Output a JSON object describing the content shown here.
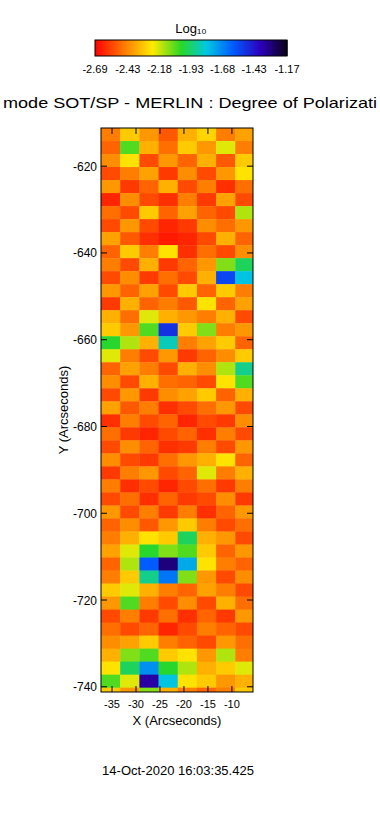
{
  "chart_data": {
    "type": "heatmap",
    "title": "mode SOT/SP - MERLIN : Degree of Polarizati",
    "x_label": "X (Arcseconds)",
    "y_label": "Y (Arcseconds)",
    "annotation": "14-Oct-2020 16:03:35.425",
    "xlim": [
      -37.3,
      -5.6
    ],
    "ylim": [
      -741.2,
      -611.2
    ],
    "xticks": [
      -35,
      -30,
      -25,
      -20,
      -15,
      -10
    ],
    "yticks": [
      -740,
      -720,
      -700,
      -680,
      -660,
      -640,
      -620
    ],
    "x": [
      -35.3,
      -31.3,
      -27.3,
      -23.3,
      -19.3,
      -15.3,
      -11.3,
      -7.3
    ],
    "y": [
      -612.7,
      -615.7,
      -618.7,
      -621.7,
      -624.7,
      -627.7,
      -630.7,
      -633.7,
      -636.7,
      -639.7,
      -642.7,
      -645.7,
      -648.7,
      -651.7,
      -654.7,
      -657.7,
      -660.7,
      -663.7,
      -666.7,
      -669.7,
      -672.7,
      -675.7,
      -678.7,
      -681.7,
      -684.7,
      -687.7,
      -690.7,
      -693.7,
      -696.7,
      -699.7,
      -702.7,
      -705.7,
      -708.7,
      -711.7,
      -714.7,
      -717.7,
      -720.7,
      -723.7,
      -726.7,
      -729.7,
      -732.7,
      -735.7,
      -738.7,
      -741.7
    ],
    "values": [
      [
        -2.45,
        -2.3,
        -2.4,
        -2.52,
        -2.35,
        -2.28,
        -2.45,
        -2.38
      ],
      [
        -2.5,
        -2.05,
        -2.35,
        -2.48,
        -2.3,
        -2.4,
        -2.2,
        -2.45
      ],
      [
        -2.42,
        -2.25,
        -2.55,
        -2.4,
        -2.5,
        -2.35,
        -2.52,
        -2.3
      ],
      [
        -2.55,
        -2.45,
        -2.38,
        -2.58,
        -2.42,
        -2.55,
        -2.4,
        -2.25
      ],
      [
        -2.4,
        -2.58,
        -2.5,
        -2.35,
        -2.55,
        -2.45,
        -2.6,
        -2.48
      ],
      [
        -2.62,
        -2.42,
        -2.55,
        -2.6,
        -2.45,
        -2.58,
        -2.38,
        -2.55
      ],
      [
        -2.48,
        -2.55,
        -2.3,
        -2.5,
        -2.38,
        -2.5,
        -2.55,
        -2.15
      ],
      [
        -2.55,
        -2.4,
        -2.55,
        -2.62,
        -2.58,
        -2.42,
        -2.48,
        -2.4
      ],
      [
        -2.38,
        -2.52,
        -2.6,
        -2.64,
        -2.62,
        -2.55,
        -2.35,
        -2.5
      ],
      [
        -2.5,
        -2.3,
        -2.45,
        -2.25,
        -2.6,
        -2.48,
        -2.55,
        -2.42
      ],
      [
        -2.45,
        -2.55,
        -2.35,
        -2.58,
        -2.5,
        -2.4,
        -2.1,
        -1.95
      ],
      [
        -2.55,
        -2.42,
        -2.58,
        -2.48,
        -2.55,
        -2.35,
        -1.55,
        -1.8
      ],
      [
        -2.4,
        -2.5,
        -2.38,
        -2.55,
        -2.3,
        -2.5,
        -2.3,
        -2.45
      ],
      [
        -2.58,
        -2.35,
        -2.5,
        -2.45,
        -2.52,
        -2.25,
        -2.5,
        -2.38
      ],
      [
        -2.35,
        -2.48,
        -2.2,
        -2.35,
        -2.4,
        -2.45,
        -2.35,
        -2.55
      ],
      [
        -2.3,
        -2.4,
        -2.05,
        -1.5,
        -2.3,
        -2.1,
        -2.45,
        -2.4
      ],
      [
        -2.0,
        -2.15,
        -2.35,
        -1.85,
        -2.45,
        -2.38,
        -2.3,
        -2.5
      ],
      [
        -2.2,
        -2.45,
        -2.55,
        -2.4,
        -2.58,
        -2.5,
        -2.42,
        -2.3
      ],
      [
        -2.5,
        -2.38,
        -2.45,
        -2.55,
        -2.35,
        -2.42,
        -2.15,
        -1.9
      ],
      [
        -2.42,
        -2.55,
        -2.35,
        -2.48,
        -2.5,
        -2.55,
        -2.25,
        -2.05
      ],
      [
        -2.55,
        -2.4,
        -2.58,
        -2.42,
        -2.38,
        -2.3,
        -2.5,
        -2.35
      ],
      [
        -2.38,
        -2.52,
        -2.45,
        -2.6,
        -2.55,
        -2.48,
        -2.4,
        -2.55
      ],
      [
        -2.6,
        -2.45,
        -2.55,
        -2.5,
        -2.62,
        -2.55,
        -2.58,
        -2.42
      ],
      [
        -2.48,
        -2.58,
        -2.62,
        -2.55,
        -2.5,
        -2.6,
        -2.45,
        -2.55
      ],
      [
        -2.55,
        -2.42,
        -2.5,
        -2.6,
        -2.58,
        -2.45,
        -2.55,
        -2.4
      ],
      [
        -2.42,
        -2.55,
        -2.58,
        -2.48,
        -2.4,
        -2.35,
        -2.25,
        -2.5
      ],
      [
        -2.58,
        -2.45,
        -2.4,
        -2.55,
        -2.5,
        -2.2,
        -2.45,
        -2.35
      ],
      [
        -2.45,
        -2.6,
        -2.55,
        -2.62,
        -2.55,
        -2.48,
        -2.58,
        -2.45
      ],
      [
        -2.55,
        -2.48,
        -2.6,
        -2.5,
        -2.58,
        -2.55,
        -2.42,
        -2.58
      ],
      [
        -2.4,
        -2.55,
        -2.45,
        -2.58,
        -2.45,
        -2.6,
        -2.5,
        -2.4
      ],
      [
        -2.5,
        -2.42,
        -2.52,
        -2.4,
        -2.3,
        -2.45,
        -2.55,
        -2.48
      ],
      [
        -2.45,
        -2.35,
        -2.25,
        -2.3,
        -1.95,
        -2.35,
        -2.4,
        -2.55
      ],
      [
        -2.38,
        -2.2,
        -2.0,
        -2.1,
        -2.05,
        -2.3,
        -2.5,
        -2.4
      ],
      [
        -2.5,
        -2.15,
        -1.6,
        -1.3,
        -1.75,
        -2.25,
        -2.45,
        -2.5
      ],
      [
        -2.45,
        -2.3,
        -1.9,
        -1.65,
        -2.1,
        -2.4,
        -2.55,
        -2.42
      ],
      [
        -2.3,
        -2.2,
        -2.35,
        -2.45,
        -2.5,
        -2.38,
        -2.45,
        -2.55
      ],
      [
        -2.4,
        -2.05,
        -2.45,
        -2.55,
        -2.42,
        -2.55,
        -2.35,
        -2.48
      ],
      [
        -2.55,
        -2.45,
        -2.58,
        -2.48,
        -2.6,
        -2.5,
        -2.58,
        -2.4
      ],
      [
        -2.48,
        -2.55,
        -2.5,
        -2.62,
        -2.55,
        -2.45,
        -2.5,
        -2.55
      ],
      [
        -2.42,
        -2.38,
        -2.3,
        -2.45,
        -2.5,
        -2.55,
        -2.4,
        -2.48
      ],
      [
        -2.35,
        -2.1,
        -2.05,
        -2.3,
        -2.25,
        -2.4,
        -2.15,
        -2.45
      ],
      [
        -2.25,
        -1.95,
        -1.7,
        -2.0,
        -2.15,
        -2.35,
        -2.3,
        -2.2
      ],
      [
        -2.05,
        -2.2,
        -1.35,
        -1.8,
        -2.25,
        -2.3,
        -2.4,
        -2.35
      ],
      [
        -2.3,
        -2.4,
        -2.1,
        -2.35,
        -2.45,
        -2.5,
        -2.45,
        -2.3
      ]
    ],
    "colorbar": {
      "label": "Log₁₀",
      "range": [
        -2.69,
        -1.17
      ],
      "ticks": [
        -2.69,
        -2.43,
        -2.18,
        -1.93,
        -1.68,
        -1.43,
        -1.17
      ]
    }
  }
}
